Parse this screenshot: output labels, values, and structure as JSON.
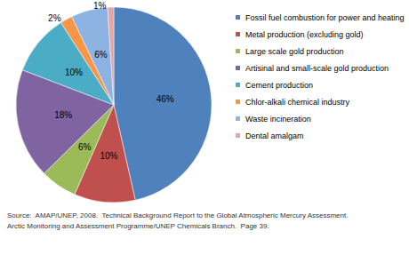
{
  "chart_data": {
    "type": "pie",
    "categories": [
      "Fossil fuel combustion for power and heating",
      "Metal production (excluding gold)",
      "Large scale gold production",
      "Artisinal and small-scale gold production",
      "Cement production",
      "Chlor-alkali chemical industry",
      "Waste incineration",
      "Dental amalgam"
    ],
    "values": [
      46,
      10,
      6,
      18,
      10,
      2,
      6,
      1
    ],
    "value_labels": [
      "46%",
      "10%",
      "6%",
      "18%",
      "10%",
      "2%",
      "6%",
      "1%"
    ],
    "colors": [
      "#4f81bd",
      "#c0504d",
      "#9bbb59",
      "#8064a2",
      "#4bacc6",
      "#f79646",
      "#8db3e2",
      "#e6a5a3"
    ],
    "data_labels": true,
    "legend": "right",
    "annotations": [
      "Source:  AMAP/UNEP, 2008.  Technical Background Report to the Global Atmospheric Mercury Assessment.",
      "Arctic Monitoring and Assessment Programme/UNEP Chemicals Branch.  Page 39."
    ]
  }
}
